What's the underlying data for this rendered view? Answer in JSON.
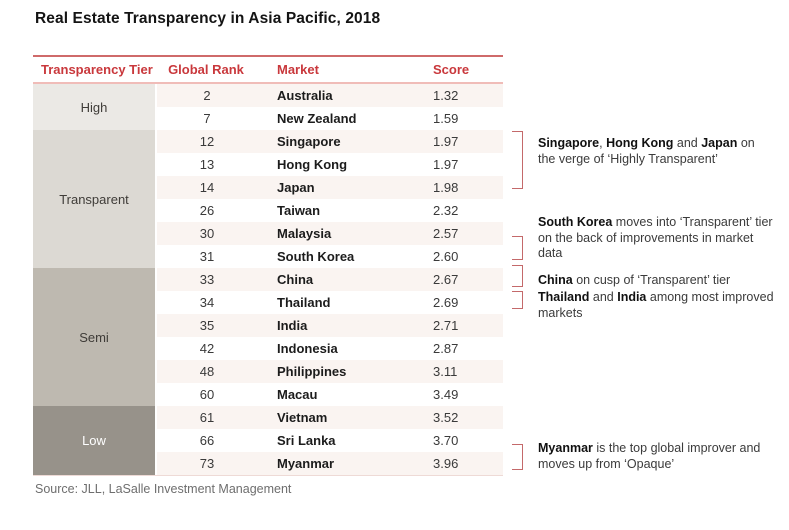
{
  "chart_data": {
    "type": "table",
    "title": "Real Estate Transparency in Asia Pacific, 2018",
    "columns": [
      "Transparency Tier",
      "Global Rank",
      "Market",
      "Score"
    ],
    "tier_groups": [
      {
        "tier": "High",
        "row_count": 2,
        "bg": "#ebe9e5",
        "text": "#3f3c38"
      },
      {
        "tier": "Transparent",
        "row_count": 6,
        "bg": "#dcd9d3",
        "text": "#3f3c38"
      },
      {
        "tier": "Semi",
        "row_count": 6,
        "bg": "#beb9b0",
        "text": "#3f3c38"
      },
      {
        "tier": "Low",
        "row_count": 3,
        "bg": "#97928a",
        "text": "#ffffff"
      }
    ],
    "rows": [
      {
        "tier": "High",
        "global_rank": "2",
        "market": "Australia",
        "score": "1.32"
      },
      {
        "tier": "High",
        "global_rank": "7",
        "market": "New Zealand",
        "score": "1.59"
      },
      {
        "tier": "Transparent",
        "global_rank": "12",
        "market": "Singapore",
        "score": "1.97"
      },
      {
        "tier": "Transparent",
        "global_rank": "13",
        "market": "Hong Kong",
        "score": "1.97"
      },
      {
        "tier": "Transparent",
        "global_rank": "14",
        "market": "Japan",
        "score": "1.98"
      },
      {
        "tier": "Transparent",
        "global_rank": "26",
        "market": "Taiwan",
        "score": "2.32"
      },
      {
        "tier": "Transparent",
        "global_rank": "30",
        "market": "Malaysia",
        "score": "2.57"
      },
      {
        "tier": "Transparent",
        "global_rank": "31",
        "market": "South Korea",
        "score": "2.60"
      },
      {
        "tier": "Semi",
        "global_rank": "33",
        "market": "China",
        "score": "2.67"
      },
      {
        "tier": "Semi",
        "global_rank": "34",
        "market": "Thailand",
        "score": "2.69"
      },
      {
        "tier": "Semi",
        "global_rank": "35",
        "market": "India",
        "score": "2.71"
      },
      {
        "tier": "Semi",
        "global_rank": "42",
        "market": "Indonesia",
        "score": "2.87"
      },
      {
        "tier": "Semi",
        "global_rank": "48",
        "market": "Philippines",
        "score": "3.11"
      },
      {
        "tier": "Semi",
        "global_rank": "60",
        "market": "Macau",
        "score": "3.49"
      },
      {
        "tier": "Low",
        "global_rank": "61",
        "market": "Vietnam",
        "score": "3.52"
      },
      {
        "tier": "Low",
        "global_rank": "66",
        "market": "Sri Lanka",
        "score": "3.70"
      },
      {
        "tier": "Low",
        "global_rank": "73",
        "market": "Myanmar",
        "score": "3.96"
      }
    ],
    "annotations": [
      {
        "segments": [
          {
            "text": "Singapore",
            "bold": true
          },
          {
            "text": ", ",
            "bold": false
          },
          {
            "text": "Hong Kong",
            "bold": true
          },
          {
            "text": " and ",
            "bold": false
          },
          {
            "text": "Japan",
            "bold": true
          },
          {
            "text": " on the verge of ‘Highly Transparent’",
            "bold": false
          }
        ]
      },
      {
        "segments": [
          {
            "text": "South Korea",
            "bold": true
          },
          {
            "text": " moves into ‘Transparent’ tier on the back of improvements in market data",
            "bold": false
          }
        ]
      },
      {
        "segments": [
          {
            "text": "China",
            "bold": true
          },
          {
            "text": " on cusp of ‘Transparent’ tier",
            "bold": false
          }
        ]
      },
      {
        "segments": [
          {
            "text": "Thailand",
            "bold": true
          },
          {
            "text": " and ",
            "bold": false
          },
          {
            "text": "India",
            "bold": true
          },
          {
            "text": " among most improved markets",
            "bold": false
          }
        ]
      },
      {
        "segments": [
          {
            "text": "Myanmar",
            "bold": true
          },
          {
            "text": " is the top global improver and moves up from ‘Opaque’",
            "bold": false
          }
        ]
      }
    ],
    "source": "Source: JLL, LaSalle Investment Management",
    "layout_hints": {
      "grid": "off",
      "striped_rows": true,
      "annotation_position": "right"
    }
  },
  "colors": {
    "header_red": "#c9383c",
    "rule_red": "#cf6a6a",
    "rule_pink": "#f0bcb8",
    "bracket_red": "#c4696a",
    "row_stripe": "#faf4f1"
  }
}
